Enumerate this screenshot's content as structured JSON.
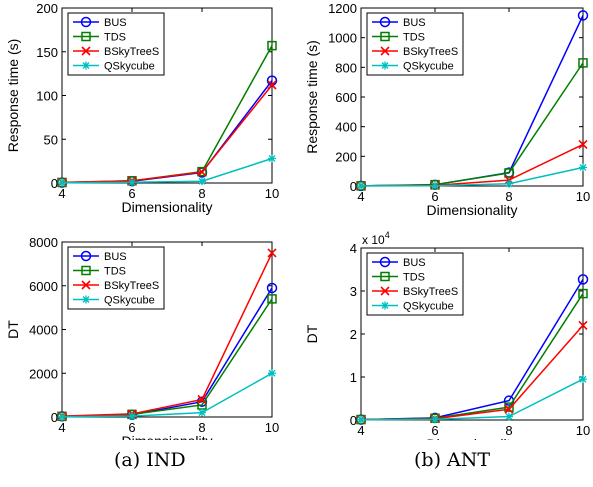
{
  "captions": {
    "left": "(a) IND",
    "right": "(b) ANT"
  },
  "colors": {
    "BUS": "#0000ff",
    "TDS": "#007f00",
    "BSkyTreeS": "#ff0000",
    "QSkycube": "#00bfbf"
  },
  "chart_data": [
    {
      "type": "line",
      "xlabel": "Dimensionality",
      "ylabel": "Response time (s)",
      "x": [
        4,
        6,
        8,
        10
      ],
      "xticks": [
        "4",
        "6",
        "8",
        "10"
      ],
      "ylim": [
        0,
        200
      ],
      "yticks": [
        "0",
        "50",
        "100",
        "150",
        "200"
      ],
      "exponent": "",
      "legend": "top-left",
      "series": [
        {
          "name": "BUS",
          "marker": "circle",
          "values": [
            0.5,
            2,
            12,
            117
          ]
        },
        {
          "name": "TDS",
          "marker": "square",
          "values": [
            0.6,
            2.5,
            13,
            157
          ]
        },
        {
          "name": "BSkyTreeS",
          "marker": "x",
          "values": [
            0.7,
            2.5,
            12.5,
            112
          ]
        },
        {
          "name": "QSkycube",
          "marker": "star",
          "values": [
            0.3,
            0.8,
            2,
            28
          ]
        }
      ]
    },
    {
      "type": "line",
      "xlabel": "Dimensionality",
      "ylabel": "Response time (s)",
      "x": [
        4,
        6,
        8,
        10
      ],
      "xticks": [
        "4",
        "6",
        "8",
        "10"
      ],
      "ylim": [
        0,
        1200
      ],
      "yticks": [
        "0",
        "200",
        "400",
        "600",
        "800",
        "1000",
        "1200"
      ],
      "exponent": "",
      "legend": "top-left",
      "series": [
        {
          "name": "BUS",
          "marker": "circle",
          "values": [
            1,
            8,
            90,
            1150
          ]
        },
        {
          "name": "TDS",
          "marker": "square",
          "values": [
            1,
            9,
            88,
            830
          ]
        },
        {
          "name": "BSkyTreeS",
          "marker": "x",
          "values": [
            1,
            4,
            40,
            280
          ]
        },
        {
          "name": "QSkycube",
          "marker": "star",
          "values": [
            0.5,
            2,
            15,
            125
          ]
        }
      ]
    },
    {
      "type": "line",
      "xlabel": "Dimensionality",
      "ylabel": "DT",
      "x": [
        4,
        6,
        8,
        10
      ],
      "xticks": [
        "4",
        "6",
        "8",
        "10"
      ],
      "ylim": [
        0,
        8000
      ],
      "yticks": [
        "0",
        "2000",
        "4000",
        "6000",
        "8000"
      ],
      "exponent": "",
      "legend": "top-left",
      "series": [
        {
          "name": "BUS",
          "marker": "circle",
          "values": [
            30,
            100,
            700,
            5900
          ]
        },
        {
          "name": "TDS",
          "marker": "square",
          "values": [
            30,
            120,
            550,
            5400
          ]
        },
        {
          "name": "BSkyTreeS",
          "marker": "x",
          "values": [
            40,
            140,
            800,
            7500
          ]
        },
        {
          "name": "QSkycube",
          "marker": "star",
          "values": [
            10,
            40,
            200,
            2000
          ]
        }
      ]
    },
    {
      "type": "line",
      "xlabel": "Dimensionality",
      "ylabel": "DT",
      "x": [
        4,
        6,
        8,
        10
      ],
      "xticks": [
        "4",
        "6",
        "8",
        "10"
      ],
      "ylim": [
        0,
        40000
      ],
      "yticks": [
        "0",
        "1",
        "2",
        "3",
        "4"
      ],
      "exponent": "x 10^4",
      "legend": "top-left",
      "series": [
        {
          "name": "BUS",
          "marker": "circle",
          "values": [
            100,
            500,
            4500,
            32700
          ]
        },
        {
          "name": "TDS",
          "marker": "square",
          "values": [
            100,
            400,
            3000,
            29400
          ]
        },
        {
          "name": "BSkyTreeS",
          "marker": "x",
          "values": [
            80,
            300,
            2500,
            22000
          ]
        },
        {
          "name": "QSkycube",
          "marker": "star",
          "values": [
            50,
            150,
            800,
            9500
          ]
        }
      ]
    }
  ]
}
